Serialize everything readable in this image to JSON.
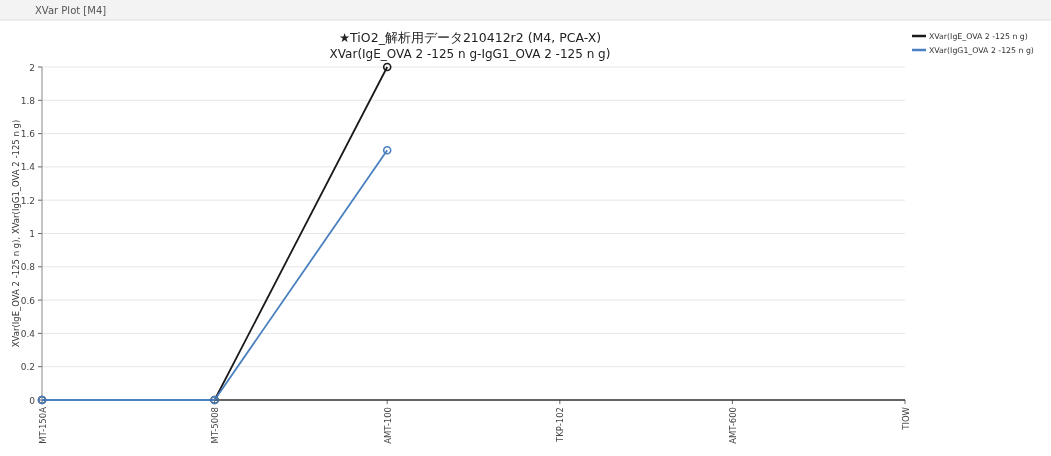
{
  "chart_data": {
    "type": "line",
    "title": "★TiO2_解析用データ210412r2 (M4, PCA-X)",
    "subtitle": "XVar(IgE_OVA 2 -125 n g-IgG1_OVA 2 -125 n g)",
    "ylabel": "XVar(IgE_OVA 2 -125 n g), XVar(IgG1_OVA 2 -125 n g)",
    "annotations": [
      "XVar Plot [M4]"
    ],
    "categories": [
      "MT-150A",
      "MT-5008",
      "AMT-100",
      "TKP-102",
      "AMT-600",
      "TIOW"
    ],
    "series": [
      {
        "name": "XVar(IgE_OVA 2 -125 n g)",
        "color": "#1a1a1a",
        "values": [
          0,
          0,
          2,
          null,
          null,
          null
        ]
      },
      {
        "name": "XVar(IgG1_OVA 2 -125 n g)",
        "color": "#4a7fc0",
        "values": [
          0,
          0,
          1.5,
          null,
          null,
          null
        ]
      }
    ],
    "ylim": [
      0,
      2
    ],
    "yticks": [
      0,
      0.2,
      0.4,
      0.6,
      0.8,
      1,
      1.2,
      1.4,
      1.6,
      1.8,
      2
    ],
    "grid": "y",
    "legend": "top right",
    "marker": "circle",
    "line_style": "solid"
  }
}
